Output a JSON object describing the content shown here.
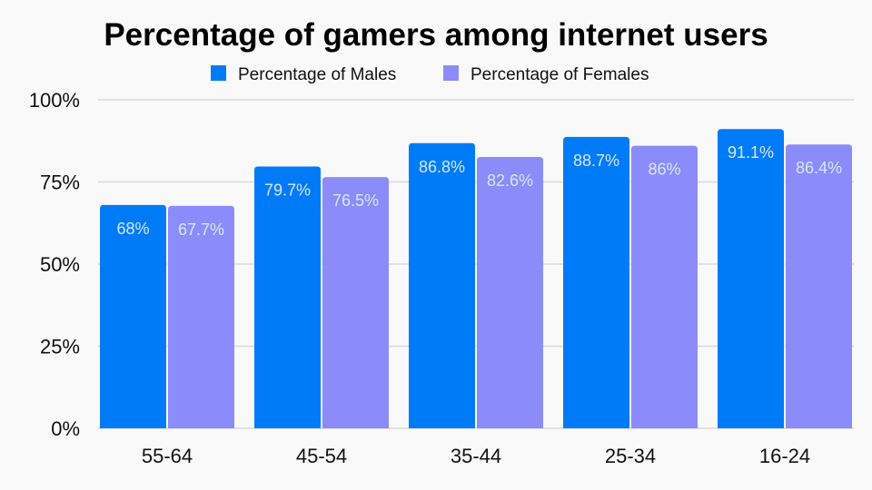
{
  "chart_data": {
    "type": "bar",
    "title": "Percentage of gamers among internet users",
    "categories": [
      "55-64",
      "45-54",
      "35-44",
      "25-34",
      "16-24"
    ],
    "series": [
      {
        "name": "Percentage of Males",
        "values": [
          68,
          79.7,
          86.8,
          88.7,
          91.1
        ],
        "labels": [
          "68%",
          "79.7%",
          "86.8%",
          "88.7%",
          "91.1%"
        ],
        "color": "#007bf7"
      },
      {
        "name": "Percentage of Females",
        "values": [
          67.7,
          76.5,
          82.6,
          86,
          86.4
        ],
        "labels": [
          "67.7%",
          "76.5%",
          "82.6%",
          "86%",
          "86.4%"
        ],
        "color": "#8b8bf9"
      }
    ],
    "ylim": [
      0,
      100
    ],
    "yticks": [
      0,
      25,
      50,
      75,
      100
    ],
    "ytick_labels": [
      "0%",
      "25%",
      "50%",
      "75%",
      "100%"
    ],
    "grid": true,
    "legend_placement": "top"
  }
}
